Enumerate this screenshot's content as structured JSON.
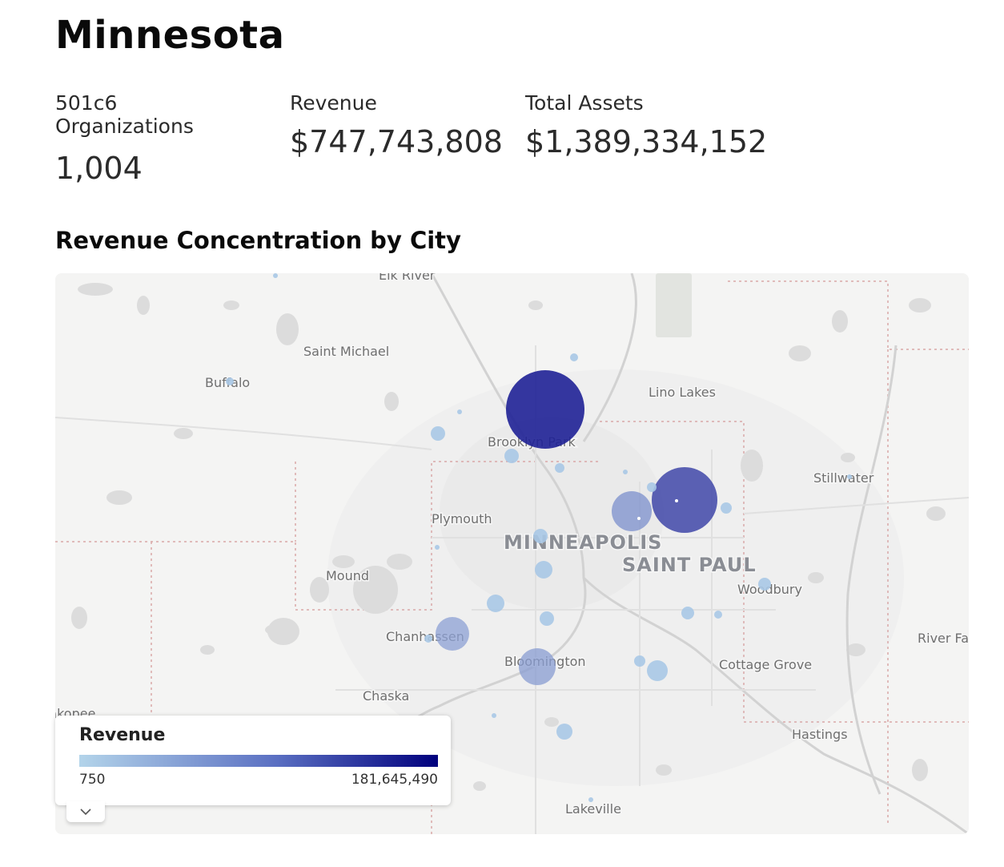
{
  "header": {
    "title": "Minnesota"
  },
  "stats": {
    "orgs": {
      "label": "501c6 Organizations",
      "value": "1,004"
    },
    "revenue": {
      "label": "Revenue",
      "value": "$747,743,808"
    },
    "assets": {
      "label": "Total Assets",
      "value": "$1,389,334,152"
    }
  },
  "section": {
    "title": "Revenue Concentration by City"
  },
  "map": {
    "place_labels": [
      "Elk River",
      "Saint Michael",
      "Buffalo",
      "Lino Lakes",
      "Brooklyn Park",
      "Stillwater",
      "Plymouth",
      "Mound",
      "Woodbury",
      "Chanhassen",
      "Bloomington",
      "Cottage Grove",
      "River Falls",
      "Chaska",
      "Shakopee",
      "Hastings",
      "Lakeville"
    ],
    "major_labels": [
      "MINNEAPOLIS",
      "SAINT PAUL"
    ]
  },
  "legend": {
    "title": "Revenue",
    "min_label": "750",
    "max_label": "181,645,490",
    "toggle_icon": "chevron-down-icon"
  },
  "colors": {
    "low": "#b3d4ea",
    "high": "#00007d"
  }
}
